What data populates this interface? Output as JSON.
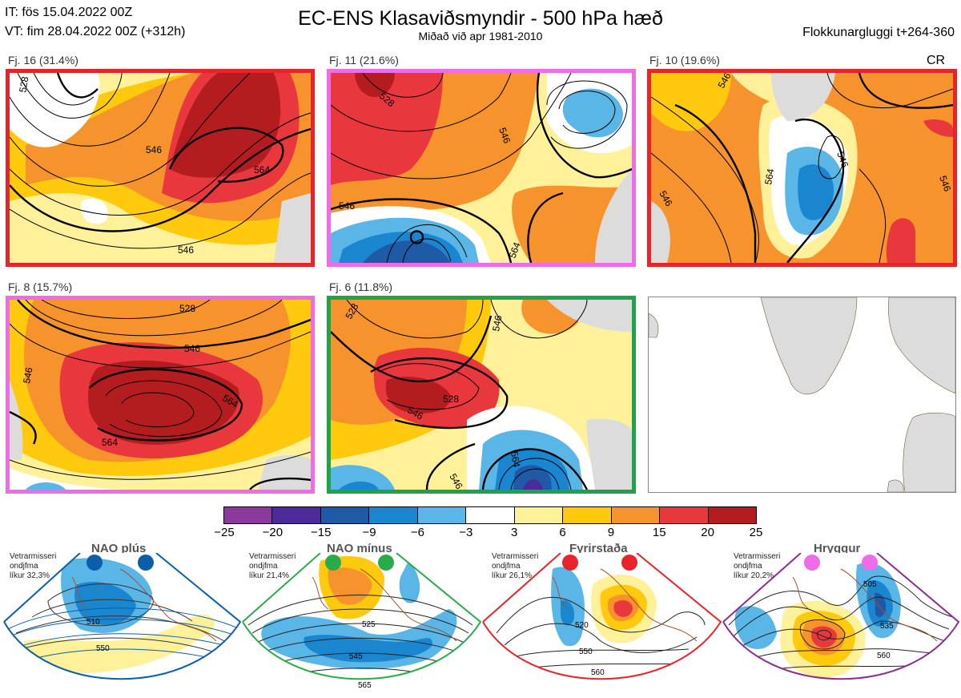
{
  "header": {
    "init_time": "IT: fös 15.04.2022 00Z",
    "valid_time": "VT: fim 28.04.2022 00Z  (+312h)",
    "title": "EC-ENS Klasaviðsmyndir - 500 hPa hæð",
    "subtitle": "Miðað við apr 1981-2010",
    "cluster_window": "Flokkunargluggi t+264-360",
    "cr_label": "CR"
  },
  "panels": [
    {
      "label": "Fj. 16 (31.4%)",
      "border_color": "#e8242b",
      "contours": [
        "546",
        "528",
        "564",
        "546"
      ]
    },
    {
      "label": "Fj. 11 (21.6%)",
      "border_color": "#ef6be8",
      "contours": [
        "528",
        "546",
        "546",
        "564"
      ]
    },
    {
      "label": "Fj. 10 (19.6%)",
      "border_color": "#e8242b",
      "contours": [
        "546",
        "546",
        "564",
        "546",
        "546"
      ]
    },
    {
      "label": "Fj. 8 (15.7%)",
      "border_color": "#ef6be8",
      "contours": [
        "528",
        "546",
        "546",
        "564",
        "564"
      ]
    },
    {
      "label": "Fj. 6 (11.8%)",
      "border_color": "#1fa34a",
      "contours": [
        "546",
        "528",
        "546",
        "528",
        "564",
        "546"
      ]
    }
  ],
  "colorbar": {
    "labels": [
      "−25",
      "−20",
      "−15",
      "−9",
      "−6",
      "−3",
      "3",
      "6",
      "9",
      "15",
      "20",
      "25"
    ],
    "colors": [
      "#8b3a9c",
      "#4b2a9a",
      "#1f5aa6",
      "#1a86d0",
      "#5ab6e6",
      "#ffffff",
      "#fff09a",
      "#ffc90e",
      "#f7932c",
      "#e8373d",
      "#b41d1f"
    ]
  },
  "regimes": [
    {
      "title": "NAO plús",
      "note_lines": [
        "Vetrarmisseri",
        "ondjfma",
        "líkur 32,3%"
      ],
      "color": "#0b5ea8",
      "dot_color": "#0b5ea8",
      "contours": [
        "510",
        "550"
      ]
    },
    {
      "title": "NAO mínus",
      "note_lines": [
        "Vetrarmisseri",
        "ondjfma",
        "líkur 21,4%"
      ],
      "color": "#2aab4a",
      "dot_color": "#2aab4a",
      "contours": [
        "525",
        "545",
        "565"
      ]
    },
    {
      "title": "Fyrirstaða",
      "note_lines": [
        "Vetrarmisseri",
        "ondjfma",
        "líkur 26,1%"
      ],
      "color": "#e8242b",
      "dot_color": "#e8242b",
      "contours": [
        "520",
        "550",
        "560"
      ]
    },
    {
      "title": "Hryggur",
      "note_lines": [
        "Vetrarmisseri",
        "ondjfma",
        "líkur 20,2%"
      ],
      "color": "#8b2d8e",
      "dot_color": "#ef6be8",
      "contours": [
        "505",
        "535",
        "560"
      ]
    }
  ]
}
